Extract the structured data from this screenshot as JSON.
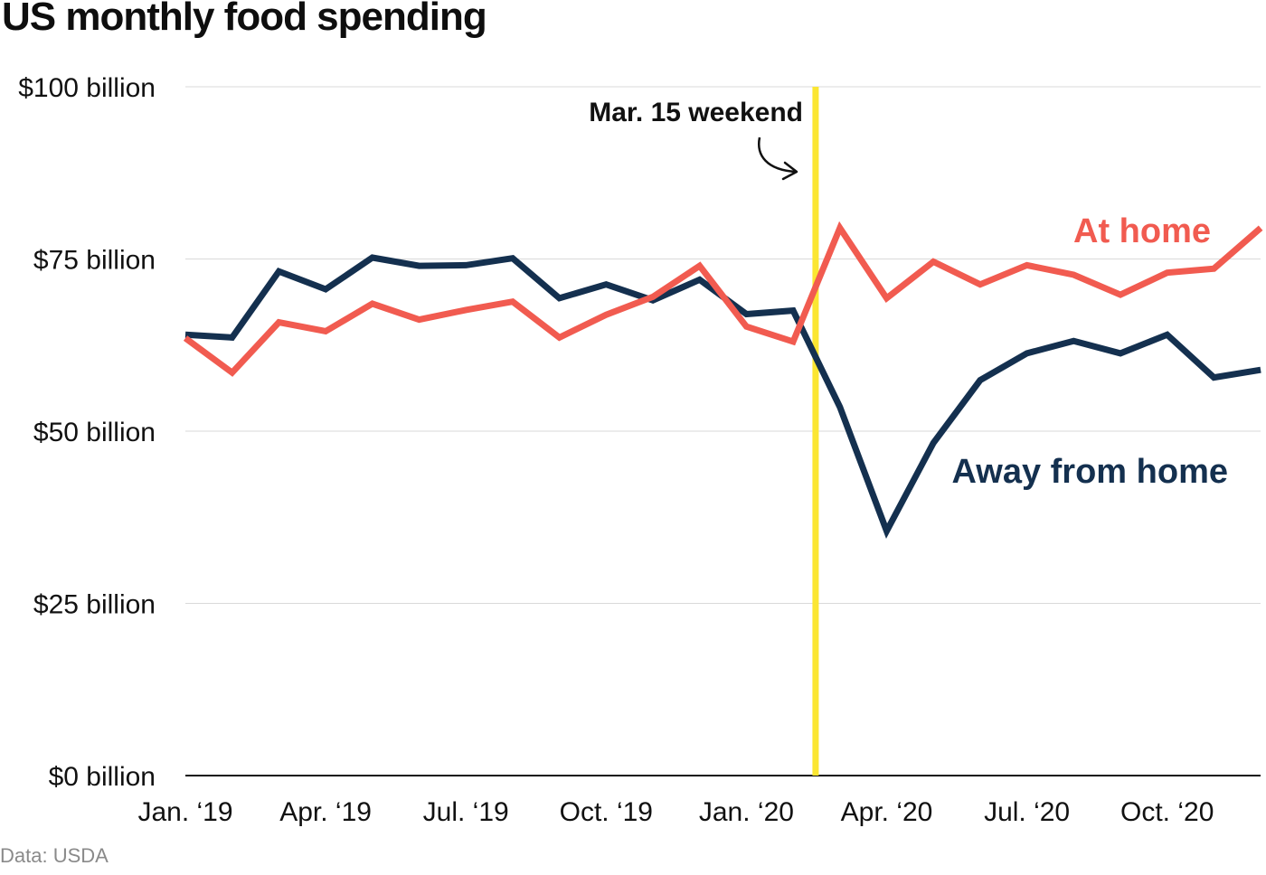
{
  "title": "US monthly food spending",
  "source": "Data: USDA",
  "colors": {
    "away_from_home": "#14304f",
    "at_home": "#f15b50",
    "highlight": "#fbe632",
    "grid": "#d9d9d9",
    "axis": "#111111"
  },
  "chart_data": {
    "type": "line",
    "title": "US monthly food spending",
    "xlabel": "",
    "ylabel": "",
    "ylim": [
      0,
      100
    ],
    "yticks": [
      {
        "value": 0,
        "label": "$0 billion"
      },
      {
        "value": 25,
        "label": "$25 billion"
      },
      {
        "value": 50,
        "label": "$50 billion"
      },
      {
        "value": 75,
        "label": "$75 billion"
      },
      {
        "value": 100,
        "label": "$100 billion"
      }
    ],
    "x": [
      "2019-01",
      "2019-02",
      "2019-03",
      "2019-04",
      "2019-05",
      "2019-06",
      "2019-07",
      "2019-08",
      "2019-09",
      "2019-10",
      "2019-11",
      "2019-12",
      "2020-01",
      "2020-02",
      "2020-03",
      "2020-04",
      "2020-05",
      "2020-06",
      "2020-07",
      "2020-08",
      "2020-09",
      "2020-10",
      "2020-11",
      "2020-12"
    ],
    "xticks": [
      {
        "month": "2019-01",
        "label": "Jan. ‘19"
      },
      {
        "month": "2019-04",
        "label": "Apr. ‘19"
      },
      {
        "month": "2019-07",
        "label": "Jul. ‘19"
      },
      {
        "month": "2019-10",
        "label": "Oct. ‘19"
      },
      {
        "month": "2020-01",
        "label": "Jan. ‘20"
      },
      {
        "month": "2020-04",
        "label": "Apr. ‘20"
      },
      {
        "month": "2020-07",
        "label": "Jul. ‘20"
      },
      {
        "month": "2020-10",
        "label": "Oct. ‘20"
      }
    ],
    "series": [
      {
        "name": "Away from home",
        "color": "#14304f",
        "values": [
          64.0,
          63.6,
          73.2,
          70.6,
          75.2,
          74.0,
          74.1,
          75.1,
          69.3,
          71.3,
          69.0,
          72.0,
          67.0,
          67.5,
          53.5,
          35.5,
          48.3,
          57.4,
          61.3,
          63.1,
          61.3,
          64.0,
          57.8,
          58.9
        ]
      },
      {
        "name": "At home",
        "color": "#f15b50",
        "values": [
          63.5,
          58.5,
          65.8,
          64.5,
          68.5,
          66.2,
          67.6,
          68.8,
          63.6,
          66.9,
          69.5,
          74.0,
          65.2,
          63.0,
          79.5,
          69.3,
          74.6,
          71.3,
          74.1,
          72.7,
          69.8,
          73.0,
          73.6,
          79.5
        ]
      }
    ],
    "annotations": [
      {
        "text": "Mar. 15 weekend",
        "x": "2020-03-15"
      }
    ]
  }
}
